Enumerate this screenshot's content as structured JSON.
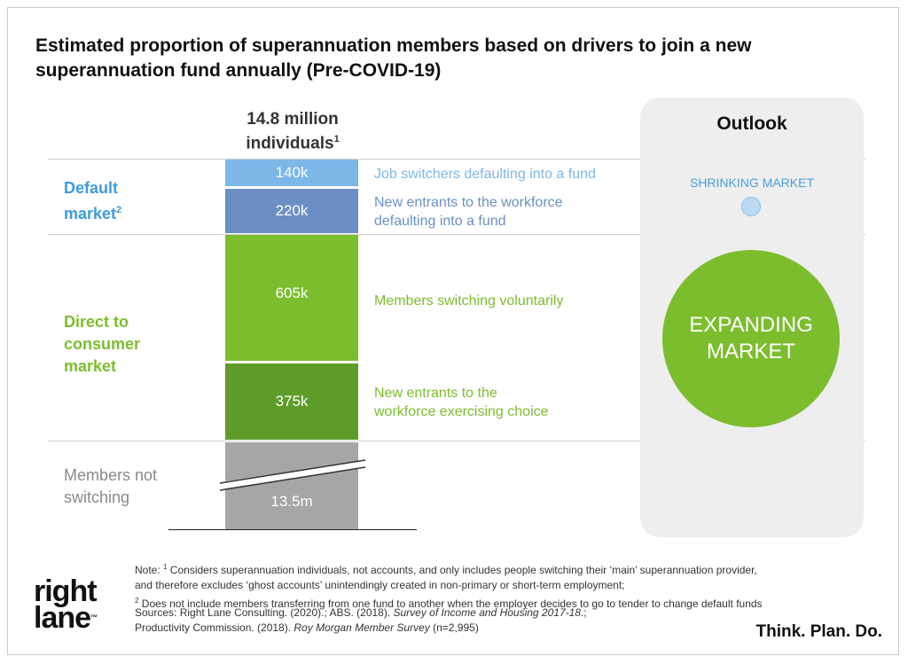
{
  "title": "Estimated proportion of superannuation members based on drivers to join a new superannuation fund annually (Pre-COVID-19)",
  "chart_data": {
    "type": "bar",
    "stacked": true,
    "column_header": "14.8 million individuals",
    "column_header_sup": "1",
    "total": "14.8 million",
    "segments": [
      {
        "value": 140000,
        "label": "140k",
        "description": "Job switchers defaulting into a fund",
        "group": "default",
        "color": "#7db7e8",
        "text_color": "#7db7e8"
      },
      {
        "value": 220000,
        "label": "220k",
        "description_lines": [
          "New entrants to the workforce",
          "defaulting into a fund"
        ],
        "group": "default",
        "color": "#6b8fc4",
        "text_color": "#6b8fc4"
      },
      {
        "value": 605000,
        "label": "605k",
        "description": "Members switching voluntarily",
        "group": "direct",
        "color": "#7cbd2e",
        "text_color": "#7cbd2e"
      },
      {
        "value": 375000,
        "label": "375k",
        "description_lines": [
          "New entrants to the",
          "workforce exercising choice"
        ],
        "group": "direct",
        "color": "#5e9c2a",
        "text_color": "#7cbd2e"
      },
      {
        "value": 13500000,
        "label": "13.5m",
        "group": "not_switching",
        "color": "#a6a6a6",
        "axis_break": true
      }
    ],
    "groups": {
      "default": {
        "lines": [
          "Default",
          "market"
        ],
        "sup": "2",
        "color": "#3d9be0"
      },
      "direct": {
        "lines": [
          "Direct to",
          "consumer",
          "market"
        ],
        "color": "#7cbd2e"
      },
      "not_switching": {
        "lines": [
          "Members not",
          "switching"
        ],
        "color": "#8a8a8a"
      }
    }
  },
  "outlook": {
    "title": "Outlook",
    "shrinking": "SHRINKING MARKET",
    "expanding_lines": [
      "EXPANDING",
      "MARKET"
    ]
  },
  "notes": {
    "line1_prefix": "Note: ",
    "line1_sup": "1",
    "line1": " Considers superannuation individuals, not accounts, and only includes people switching their ‘main’ superannuation provider,",
    "line2": "and therefore excludes ‘ghost accounts’ unintendingly created in non-primary or short-term employment;",
    "line3_sup": "2",
    "line3": " Does not include members transferring from one fund to another when the employer decides to go to tender to change default funds"
  },
  "sources": {
    "prefix": "Sources: Right Lane Consulting. (2020).; ABS. (2018). ",
    "italic1": "Survey of Income and Housing 2017-18",
    "mid": ".;",
    "line2_prefix": "Productivity Commission. (2018). ",
    "italic2": "Roy Morgan Member Survey",
    "suffix": " (n=2,995)"
  },
  "logo": {
    "line1": "right",
    "line2": "lane",
    "tm": "™"
  },
  "tagline": "Think. Plan. Do."
}
